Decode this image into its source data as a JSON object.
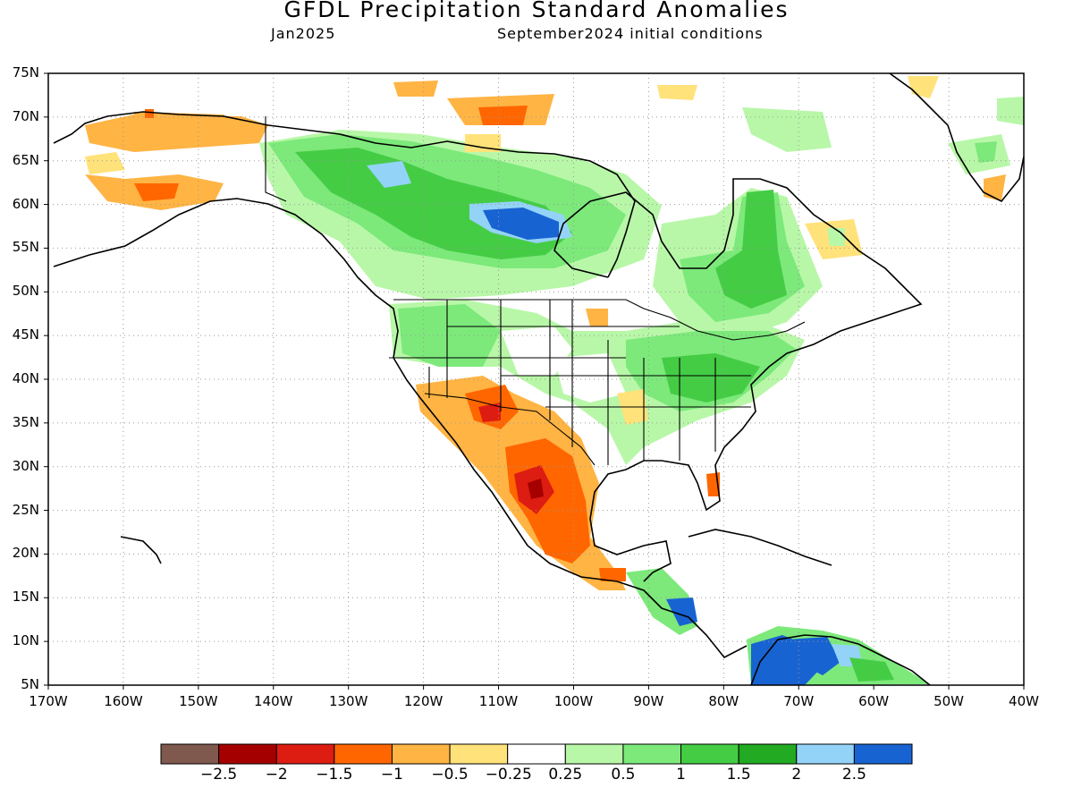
{
  "title": "GFDL Precipitation Standard Anomalies",
  "subtitle_left": "Jan2025",
  "subtitle_right": "September2024 initial conditions",
  "lat_labels": [
    "75N",
    "70N",
    "65N",
    "60N",
    "55N",
    "50N",
    "45N",
    "40N",
    "35N",
    "30N",
    "25N",
    "20N",
    "15N",
    "10N",
    "5N"
  ],
  "lon_labels": [
    "170W",
    "160W",
    "150W",
    "140W",
    "130W",
    "120W",
    "110W",
    "100W",
    "90W",
    "80W",
    "70W",
    "60W",
    "50W",
    "40W"
  ],
  "colorbar": {
    "colors": [
      "#7f584e",
      "#a50000",
      "#dd1c12",
      "#ff6600",
      "#ffb444",
      "#ffe27a",
      "#ffffff",
      "#b8f7a8",
      "#7ce97a",
      "#45cc45",
      "#22aa22",
      "#94d3f8",
      "#1863d2"
    ],
    "labels": [
      "−2.5",
      "−2",
      "−1.5",
      "−1",
      "−0.5",
      "−0.25",
      "0.25",
      "0.5",
      "1",
      "1.5",
      "2",
      "2.5"
    ]
  }
}
